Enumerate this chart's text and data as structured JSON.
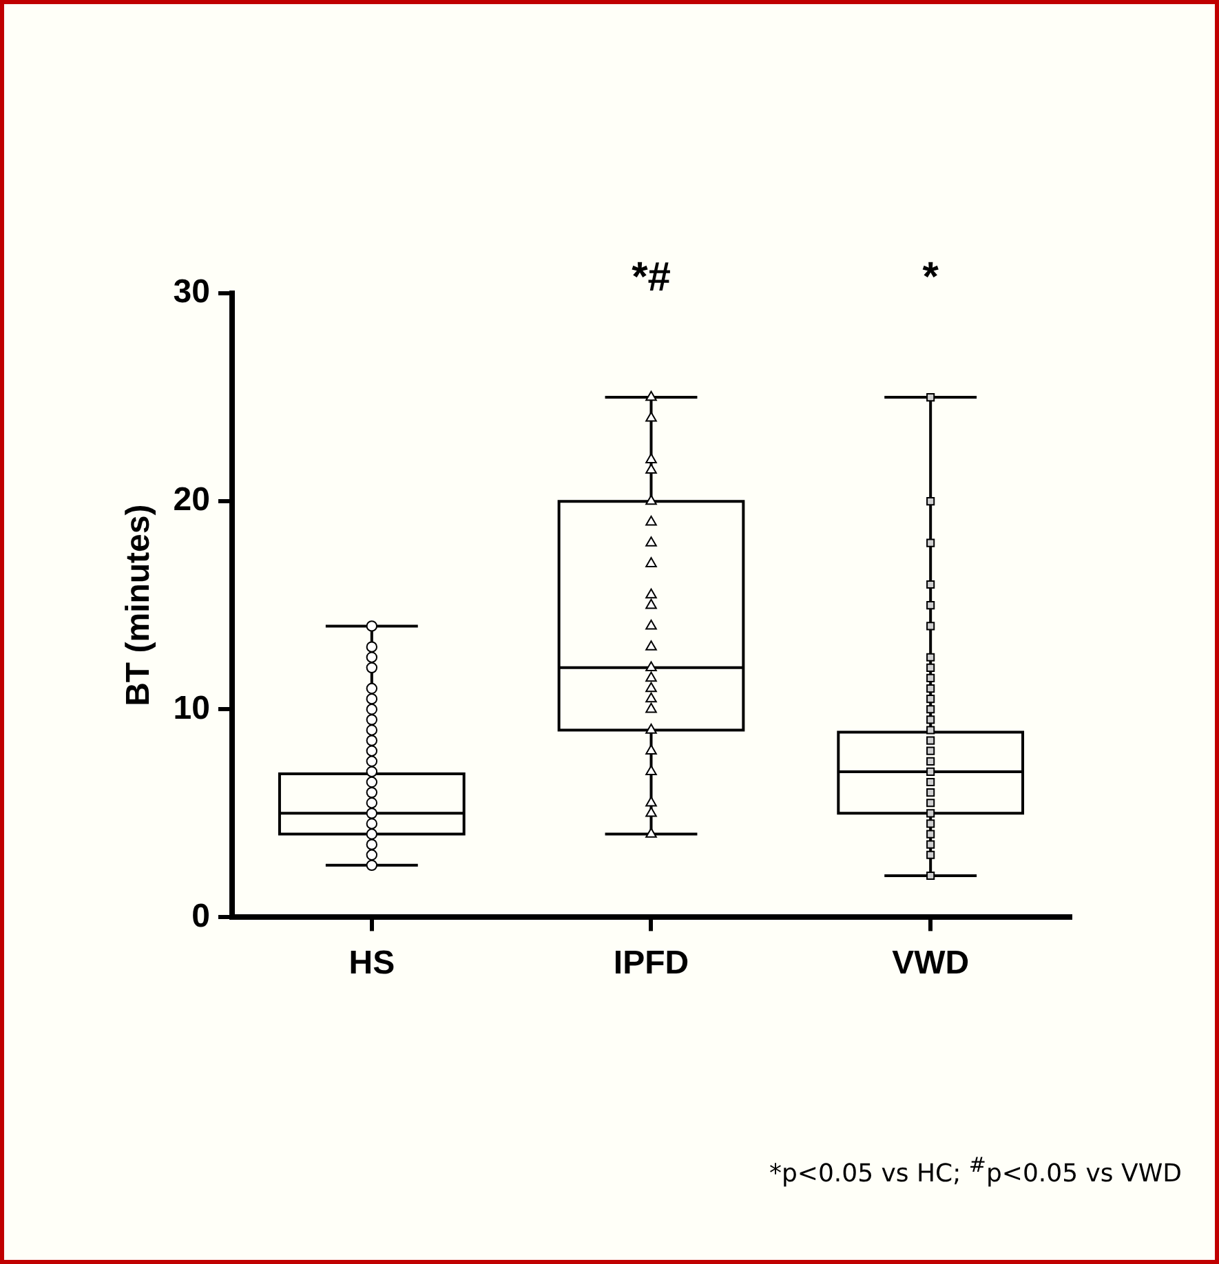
{
  "chart_data": {
    "type": "box",
    "ylabel": "BT (minutes)",
    "categories": [
      "HS",
      "IPFD",
      "VWD"
    ],
    "boxes": [
      {
        "low": 2.5,
        "q1": 4,
        "median": 5,
        "q3": 6.9,
        "high": 14
      },
      {
        "low": 4,
        "q1": 9,
        "median": 12,
        "q3": 20,
        "high": 25
      },
      {
        "low": 2,
        "q1": 5,
        "median": 7,
        "q3": 8.9,
        "high": 25
      }
    ],
    "series": [
      {
        "type": "scatter",
        "marker": "circle",
        "color": "#ffffff",
        "x": [
          "HS",
          "HS",
          "HS",
          "HS",
          "HS",
          "HS",
          "HS",
          "HS",
          "HS",
          "HS",
          "HS",
          "HS",
          "HS",
          "HS",
          "HS",
          "HS",
          "HS",
          "HS",
          "HS",
          "HS",
          "HS",
          "HS"
        ],
        "values": [
          2.5,
          3,
          3.5,
          4,
          4.5,
          5,
          5.5,
          6,
          6.5,
          7,
          7.5,
          8,
          8.5,
          9,
          9.5,
          10,
          10.5,
          11,
          12,
          12.5,
          13,
          14
        ]
      },
      {
        "type": "scatter",
        "marker": "triangle",
        "color": "#ffffff",
        "x": [
          "IPFD",
          "IPFD",
          "IPFD",
          "IPFD",
          "IPFD",
          "IPFD",
          "IPFD",
          "IPFD",
          "IPFD",
          "IPFD",
          "IPFD",
          "IPFD",
          "IPFD",
          "IPFD",
          "IPFD",
          "IPFD",
          "IPFD",
          "IPFD",
          "IPFD",
          "IPFD",
          "IPFD",
          "IPFD",
          "IPFD"
        ],
        "values": [
          4,
          5,
          5.5,
          7,
          8,
          9,
          10,
          10.5,
          11,
          11.5,
          12,
          13,
          14,
          15,
          15.5,
          17,
          18,
          19,
          20,
          21.5,
          22,
          24,
          25
        ]
      },
      {
        "type": "scatter",
        "marker": "square",
        "color": "#d0d0d0",
        "x": [
          "VWD",
          "VWD",
          "VWD",
          "VWD",
          "VWD",
          "VWD",
          "VWD",
          "VWD",
          "VWD",
          "VWD",
          "VWD",
          "VWD",
          "VWD",
          "VWD",
          "VWD",
          "VWD",
          "VWD",
          "VWD",
          "VWD",
          "VWD",
          "VWD",
          "VWD",
          "VWD",
          "VWD",
          "VWD",
          "VWD",
          "VWD"
        ],
        "values": [
          2,
          3,
          3.5,
          4,
          4.5,
          5,
          5.5,
          6,
          6.5,
          7,
          7.5,
          8,
          8.5,
          9,
          9.5,
          10,
          10.5,
          11,
          11.5,
          12,
          12.5,
          14,
          15,
          16,
          18,
          20,
          25
        ]
      }
    ],
    "color": "#000000",
    "ylim": [
      0,
      30
    ],
    "yticks": [
      0,
      10,
      20,
      30
    ],
    "grid": false,
    "legend": false,
    "annotations": [
      "*#",
      "*",
      "*p<0.05 vs HC; $^{#}$p<0.05 vs VWD"
    ]
  }
}
